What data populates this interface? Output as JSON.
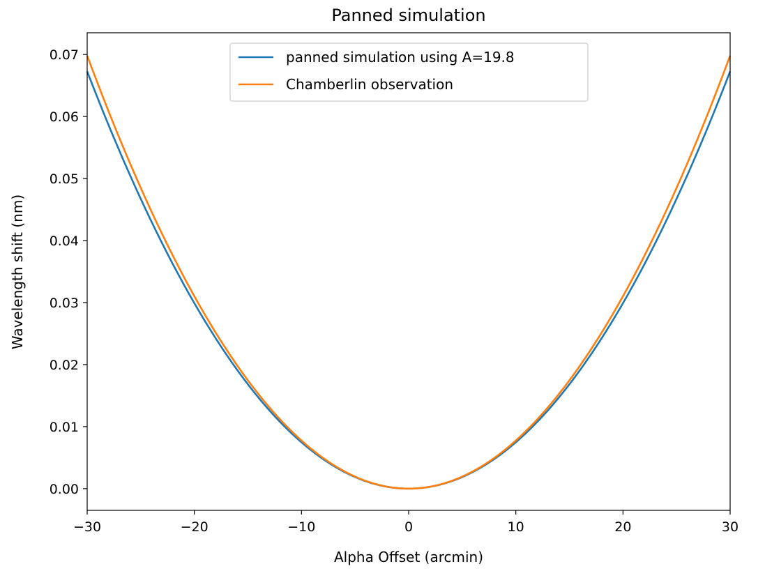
{
  "chart_data": {
    "type": "line",
    "title": "Panned simulation",
    "xlabel": "Alpha Offset (arcmin)",
    "ylabel": "Wavelength shift (nm)",
    "xlim": [
      -30,
      30
    ],
    "ylim": [
      -0.0035,
      0.0735
    ],
    "xticks": [
      -30,
      -20,
      -10,
      0,
      10,
      20,
      30
    ],
    "xtick_labels": [
      "−30",
      "−20",
      "−10",
      "0",
      "10",
      "20",
      "30"
    ],
    "yticks": [
      0.0,
      0.01,
      0.02,
      0.03,
      0.04,
      0.05,
      0.06,
      0.07
    ],
    "ytick_labels": [
      "0.00",
      "0.01",
      "0.02",
      "0.03",
      "0.04",
      "0.05",
      "0.06",
      "0.07"
    ],
    "grid": false,
    "legend_position": "top-center",
    "x": [
      -30,
      -25,
      -20,
      -15,
      -10,
      -5,
      0,
      5,
      10,
      15,
      20,
      25,
      30
    ],
    "series": [
      {
        "name": "panned simulation using A=19.8",
        "color": "#1f77b4",
        "values": [
          0.0673,
          0.0467,
          0.0299,
          0.0168,
          0.0075,
          0.0019,
          0.0,
          0.0019,
          0.0075,
          0.0168,
          0.0299,
          0.0467,
          0.0673
        ]
      },
      {
        "name": "Chamberlin observation",
        "color": "#ff7f0e",
        "values": [
          0.0698,
          0.0485,
          0.031,
          0.0175,
          0.0078,
          0.0019,
          0.0,
          0.0019,
          0.0078,
          0.0175,
          0.031,
          0.0485,
          0.0698
        ]
      }
    ]
  }
}
